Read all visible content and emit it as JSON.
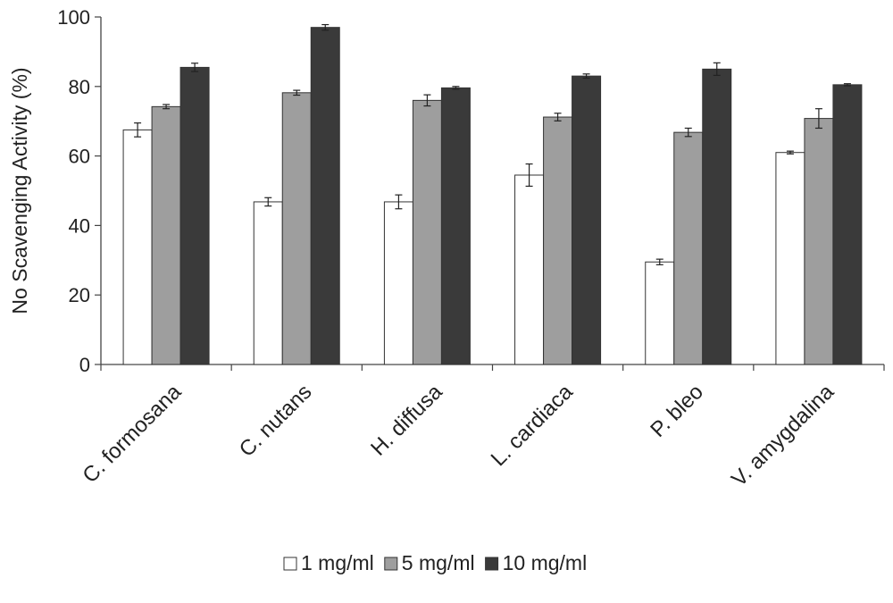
{
  "chart_data": {
    "type": "bar",
    "title": "",
    "xlabel": "",
    "ylabel": "No Scavenging Activity (%)",
    "ylim": [
      0,
      100
    ],
    "yticks": [
      0,
      20,
      40,
      60,
      80,
      100
    ],
    "categories": [
      "C. formosana",
      "C. nutans",
      "H. diffusa",
      "L. cardiaca",
      "P. bleo",
      "V. amygdalina"
    ],
    "series": [
      {
        "name": "1 mg/ml",
        "color": "#ffffff",
        "values": [
          67.5,
          46.8,
          46.8,
          54.5,
          29.5,
          61.0
        ],
        "errors": [
          2.0,
          1.2,
          2.0,
          3.2,
          0.8,
          0.4
        ]
      },
      {
        "name": "5 mg/ml",
        "color": "#9e9e9e",
        "values": [
          74.2,
          78.2,
          76.0,
          71.2,
          66.8,
          70.8
        ],
        "errors": [
          0.6,
          0.7,
          1.6,
          1.1,
          1.2,
          2.8
        ]
      },
      {
        "name": "10 mg/ml",
        "color": "#3a3a3a",
        "values": [
          85.5,
          97.0,
          79.6,
          83.0,
          85.0,
          80.5
        ],
        "errors": [
          1.2,
          0.8,
          0.4,
          0.6,
          1.8,
          0.3
        ]
      }
    ],
    "grid": false,
    "legend_position": "bottom-center"
  }
}
